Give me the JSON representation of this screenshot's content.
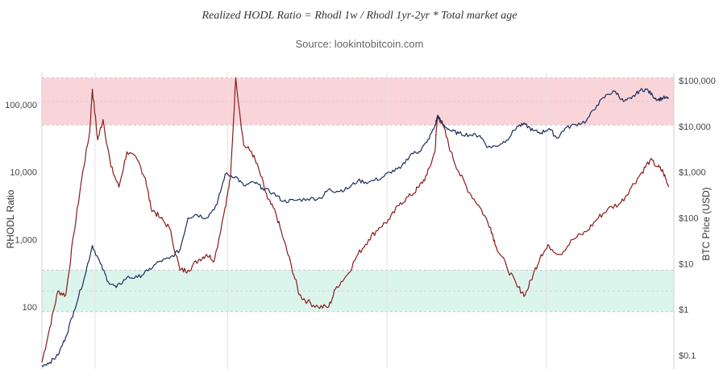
{
  "header": {
    "subtitle": "Realized HODL Ratio = Rhodl 1w / Rhodl 1yr-2yr * Total market age",
    "source": "Source: lookintobitcoin.com"
  },
  "chart_data": {
    "type": "line",
    "left_axis": {
      "label": "RHODL Ratio",
      "scale": "log",
      "range": [
        12,
        300000
      ],
      "ticks": [
        {
          "value": 100,
          "label": "100"
        },
        {
          "value": 1000,
          "label": "1,000"
        },
        {
          "value": 10000,
          "label": "10,000"
        },
        {
          "value": 100000,
          "label": "100,000"
        }
      ]
    },
    "right_axis": {
      "label": "BTC Price (USD)",
      "scale": "log",
      "range": [
        0.05,
        150000
      ],
      "ticks": [
        {
          "value": 0.1,
          "label": "$0.1"
        },
        {
          "value": 1,
          "label": "$1"
        },
        {
          "value": 10,
          "label": "$10"
        },
        {
          "value": 100,
          "label": "$100"
        },
        {
          "value": 1000,
          "label": "$1,000"
        },
        {
          "value": 10000,
          "label": "$10,000"
        },
        {
          "value": 100000,
          "label": "$100,000"
        }
      ]
    },
    "x_range": [
      2010.5,
      2022.4
    ],
    "x_gridlines": [
      2011.5,
      2014.0,
      2017.0,
      2020.0
    ],
    "bands": [
      {
        "name": "top",
        "from": 50000,
        "to": 250000,
        "color": "#f9d5d9"
      },
      {
        "name": "bottom",
        "from": 85,
        "to": 350,
        "color": "#dcf5ec"
      }
    ],
    "band_color": "#f9d5d9",
    "grid": true,
    "series": [
      {
        "axis": "left",
        "color": "#8b1a1a",
        "values": [
          [
            2010.5,
            15
          ],
          [
            2010.65,
            50
          ],
          [
            2010.8,
            170
          ],
          [
            2010.95,
            150
          ],
          [
            2011.1,
            1200
          ],
          [
            2011.25,
            8000
          ],
          [
            2011.4,
            40000
          ],
          [
            2011.45,
            170000
          ],
          [
            2011.55,
            30000
          ],
          [
            2011.65,
            60000
          ],
          [
            2011.8,
            12000
          ],
          [
            2011.95,
            6000
          ],
          [
            2012.1,
            20000
          ],
          [
            2012.3,
            15000
          ],
          [
            2012.45,
            8000
          ],
          [
            2012.55,
            3000
          ],
          [
            2012.7,
            2200
          ],
          [
            2012.9,
            1500
          ],
          [
            2013.1,
            350
          ],
          [
            2013.25,
            350
          ],
          [
            2013.45,
            500
          ],
          [
            2013.6,
            600
          ],
          [
            2013.75,
            500
          ],
          [
            2013.95,
            3000
          ],
          [
            2014.05,
            8000
          ],
          [
            2014.15,
            250000
          ],
          [
            2014.3,
            25000
          ],
          [
            2014.45,
            20000
          ],
          [
            2014.6,
            10000
          ],
          [
            2014.75,
            4000
          ],
          [
            2014.9,
            2500
          ],
          [
            2015.05,
            1000
          ],
          [
            2015.2,
            400
          ],
          [
            2015.35,
            150
          ],
          [
            2015.5,
            120
          ],
          [
            2015.7,
            100
          ],
          [
            2015.9,
            100
          ],
          [
            2016.05,
            200
          ],
          [
            2016.25,
            300
          ],
          [
            2016.45,
            600
          ],
          [
            2016.65,
            1000
          ],
          [
            2016.85,
            1500
          ],
          [
            2017.05,
            2000
          ],
          [
            2017.25,
            3500
          ],
          [
            2017.45,
            4500
          ],
          [
            2017.6,
            6000
          ],
          [
            2017.75,
            9000
          ],
          [
            2017.9,
            20000
          ],
          [
            2017.95,
            70000
          ],
          [
            2018.05,
            50000
          ],
          [
            2018.2,
            20000
          ],
          [
            2018.35,
            10000
          ],
          [
            2018.55,
            5000
          ],
          [
            2018.75,
            3000
          ],
          [
            2018.95,
            1500
          ],
          [
            2019.05,
            800
          ],
          [
            2019.25,
            400
          ],
          [
            2019.45,
            200
          ],
          [
            2019.6,
            150
          ],
          [
            2019.75,
            300
          ],
          [
            2019.9,
            600
          ],
          [
            2020.05,
            800
          ],
          [
            2020.25,
            600
          ],
          [
            2020.5,
            1000
          ],
          [
            2020.75,
            1300
          ],
          [
            2020.95,
            2000
          ],
          [
            2021.15,
            2800
          ],
          [
            2021.4,
            3500
          ],
          [
            2021.6,
            6000
          ],
          [
            2021.8,
            10000
          ],
          [
            2021.95,
            15000
          ],
          [
            2022.1,
            12000
          ],
          [
            2022.2,
            10000
          ],
          [
            2022.3,
            6000
          ]
        ]
      },
      {
        "axis": "right",
        "color": "#1b2d5e",
        "values": [
          [
            2010.5,
            0.06
          ],
          [
            2010.65,
            0.07
          ],
          [
            2010.8,
            0.1
          ],
          [
            2010.95,
            0.25
          ],
          [
            2011.1,
            0.9
          ],
          [
            2011.3,
            5
          ],
          [
            2011.45,
            25
          ],
          [
            2011.6,
            10
          ],
          [
            2011.75,
            4
          ],
          [
            2011.9,
            3
          ],
          [
            2012.1,
            5
          ],
          [
            2012.3,
            5
          ],
          [
            2012.5,
            7
          ],
          [
            2012.7,
            11
          ],
          [
            2012.9,
            13
          ],
          [
            2013.1,
            20
          ],
          [
            2013.25,
            100
          ],
          [
            2013.4,
            120
          ],
          [
            2013.6,
            100
          ],
          [
            2013.8,
            200
          ],
          [
            2013.95,
            900
          ],
          [
            2014.15,
            800
          ],
          [
            2014.3,
            500
          ],
          [
            2014.5,
            600
          ],
          [
            2014.65,
            450
          ],
          [
            2014.85,
            350
          ],
          [
            2015.05,
            230
          ],
          [
            2015.25,
            240
          ],
          [
            2015.5,
            260
          ],
          [
            2015.75,
            270
          ],
          [
            2015.9,
            420
          ],
          [
            2016.05,
            380
          ],
          [
            2016.25,
            430
          ],
          [
            2016.45,
            650
          ],
          [
            2016.65,
            600
          ],
          [
            2016.9,
            750
          ],
          [
            2017.05,
            1000
          ],
          [
            2017.25,
            1200
          ],
          [
            2017.45,
            2500
          ],
          [
            2017.6,
            2800
          ],
          [
            2017.75,
            4500
          ],
          [
            2017.9,
            10000
          ],
          [
            2017.95,
            17000
          ],
          [
            2018.05,
            11000
          ],
          [
            2018.2,
            8000
          ],
          [
            2018.35,
            7000
          ],
          [
            2018.55,
            6500
          ],
          [
            2018.75,
            6300
          ],
          [
            2018.9,
            3500
          ],
          [
            2019.05,
            3700
          ],
          [
            2019.25,
            5000
          ],
          [
            2019.45,
            10000
          ],
          [
            2019.6,
            11000
          ],
          [
            2019.75,
            8000
          ],
          [
            2019.9,
            7200
          ],
          [
            2020.05,
            9000
          ],
          [
            2020.2,
            5500
          ],
          [
            2020.35,
            9000
          ],
          [
            2020.55,
            11000
          ],
          [
            2020.75,
            13000
          ],
          [
            2020.95,
            29000
          ],
          [
            2021.15,
            50000
          ],
          [
            2021.3,
            58000
          ],
          [
            2021.45,
            35000
          ],
          [
            2021.6,
            40000
          ],
          [
            2021.75,
            60000
          ],
          [
            2021.88,
            65000
          ],
          [
            2022.0,
            47000
          ],
          [
            2022.1,
            38000
          ],
          [
            2022.2,
            42000
          ],
          [
            2022.3,
            40000
          ]
        ]
      }
    ]
  }
}
